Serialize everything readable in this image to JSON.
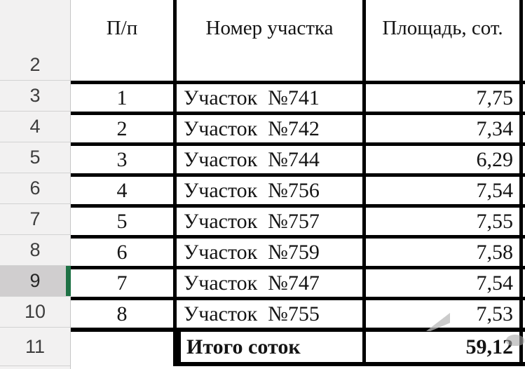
{
  "spreadsheet": {
    "row_headers": [
      "2",
      "3",
      "4",
      "5",
      "6",
      "7",
      "8",
      "9",
      "10",
      "11"
    ],
    "selected_row_header": "9",
    "selection_color": "#1e7145",
    "table": {
      "columns": [
        "П/п",
        "Номер участка",
        "Площадь, сот."
      ],
      "rows": [
        {
          "num": "1",
          "plot": "Участок  №741",
          "area": "7,75"
        },
        {
          "num": "2",
          "plot": "Участок  №742",
          "area": "7,34"
        },
        {
          "num": "3",
          "plot": "Участок  №744",
          "area": "6,29"
        },
        {
          "num": "4",
          "plot": "Участок  №756",
          "area": "7,54"
        },
        {
          "num": "5",
          "plot": "Участок  №757",
          "area": "7,55"
        },
        {
          "num": "6",
          "plot": "Участок  №759",
          "area": "7,58"
        },
        {
          "num": "7",
          "plot": "Участок  №747",
          "area": "7,54"
        },
        {
          "num": "8",
          "plot": "Участок  №755",
          "area": "7,53"
        }
      ],
      "total_label": "Итого соток",
      "total_value": "59,12"
    }
  }
}
